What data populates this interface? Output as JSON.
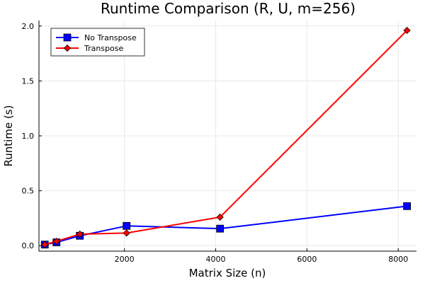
{
  "chart_data": {
    "type": "line",
    "title": "Runtime Comparison (R, U, m=256)",
    "xlabel": "Matrix Size (n)",
    "ylabel": "Runtime (s)",
    "xlim": [
      128,
      8400
    ],
    "ylim": [
      -0.05,
      2.05
    ],
    "x_ticks": [
      2000,
      4000,
      6000,
      8000
    ],
    "x_tick_labels": [
      "2000",
      "4000",
      "6000",
      "8000"
    ],
    "y_ticks": [
      0.0,
      0.5,
      1.0,
      1.5,
      2.0
    ],
    "y_tick_labels": [
      "0.0",
      "0.5",
      "1.0",
      "1.5",
      "2.0"
    ],
    "grid": true,
    "legend_position": "top-left",
    "x": [
      256,
      512,
      1024,
      2048,
      4096,
      8192
    ],
    "series": [
      {
        "name": "No Transpose",
        "values": [
          0.01,
          0.03,
          0.09,
          0.18,
          0.155,
          0.36
        ],
        "color": "#0000ff",
        "marker": "square"
      },
      {
        "name": "Transpose",
        "values": [
          0.01,
          0.04,
          0.105,
          0.115,
          0.26,
          1.96
        ],
        "color": "#ff0000",
        "marker": "diamond"
      }
    ]
  }
}
